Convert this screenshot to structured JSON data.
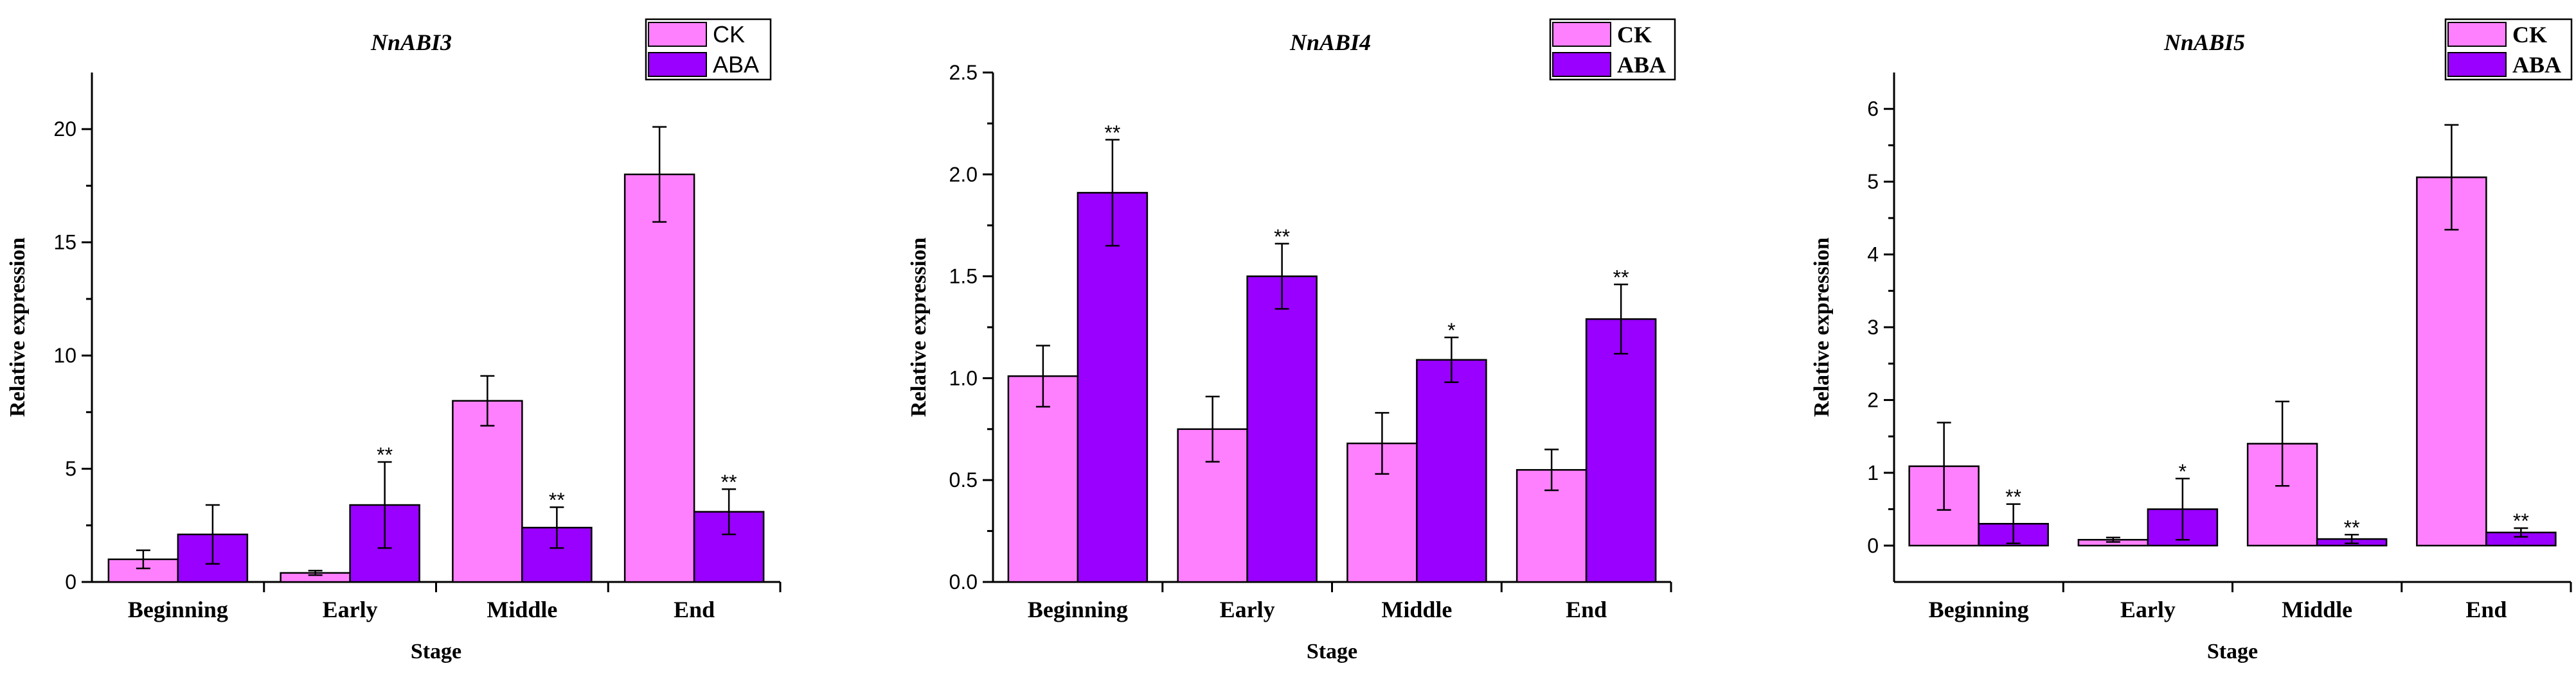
{
  "colors": {
    "ck": "#ff80ff",
    "aba": "#9900ff"
  },
  "chart_data": [
    {
      "type": "bar",
      "title": "NnABI3",
      "xlabel": "Stage",
      "ylabel": "Relative expression",
      "categories": [
        "Beginning",
        "Early",
        "Middle",
        "End"
      ],
      "ylim": [
        0,
        22.5
      ],
      "yticks": [
        0,
        5,
        10,
        15,
        20
      ],
      "ytick_labels": [
        "0",
        "5",
        "10",
        "15",
        "20"
      ],
      "legend": {
        "position": "top-right",
        "style": "regular",
        "entries": [
          "CK",
          "ABA"
        ]
      },
      "series": [
        {
          "name": "CK",
          "values": [
            1.0,
            0.4,
            8.0,
            18.0
          ],
          "errors": [
            0.4,
            0.1,
            1.1,
            2.1
          ],
          "significance": [
            "",
            "",
            "",
            ""
          ]
        },
        {
          "name": "ABA",
          "values": [
            2.1,
            3.4,
            2.4,
            3.1
          ],
          "errors": [
            1.3,
            1.9,
            0.9,
            1.0
          ],
          "significance": [
            "",
            "**",
            "**",
            "**"
          ]
        }
      ]
    },
    {
      "type": "bar",
      "title": "NnABI4",
      "xlabel": "Stage",
      "ylabel": "Relative expression",
      "categories": [
        "Beginning",
        "Early",
        "Middle",
        "End"
      ],
      "ylim": [
        0,
        2.5
      ],
      "yticks": [
        0,
        0.5,
        1.0,
        1.5,
        2.0,
        2.5
      ],
      "ytick_labels": [
        "0.0",
        "0.5",
        "1.0",
        "1.5",
        "2.0",
        "2.5"
      ],
      "legend": {
        "position": "top-right",
        "style": "bold",
        "entries": [
          "CK",
          "ABA"
        ]
      },
      "series": [
        {
          "name": "CK",
          "values": [
            1.01,
            0.75,
            0.68,
            0.55
          ],
          "errors": [
            0.15,
            0.16,
            0.15,
            0.1
          ],
          "significance": [
            "",
            "",
            "",
            ""
          ]
        },
        {
          "name": "ABA",
          "values": [
            1.91,
            1.5,
            1.09,
            1.29
          ],
          "errors": [
            0.26,
            0.16,
            0.11,
            0.17
          ],
          "significance": [
            "**",
            "**",
            "*",
            "**"
          ]
        }
      ]
    },
    {
      "type": "bar",
      "title": "NnABI5",
      "xlabel": "Stage",
      "ylabel": "Relative expression",
      "categories": [
        "Beginning",
        "Early",
        "Middle",
        "End"
      ],
      "ylim": [
        -0.5,
        6.5
      ],
      "yticks": [
        0,
        1,
        2,
        3,
        4,
        5,
        6
      ],
      "ytick_labels": [
        "0",
        "1",
        "2",
        "3",
        "4",
        "5",
        "6"
      ],
      "legend": {
        "position": "top-right",
        "style": "bold",
        "entries": [
          "CK",
          "ABA"
        ]
      },
      "series": [
        {
          "name": "CK",
          "values": [
            1.09,
            0.08,
            1.4,
            5.06
          ],
          "errors": [
            0.6,
            0.03,
            0.58,
            0.72
          ],
          "significance": [
            "",
            "",
            "",
            ""
          ]
        },
        {
          "name": "ABA",
          "values": [
            0.3,
            0.5,
            0.09,
            0.18
          ],
          "errors": [
            0.27,
            0.42,
            0.06,
            0.06
          ],
          "significance": [
            "**",
            "*",
            "**",
            "**"
          ]
        }
      ]
    }
  ]
}
